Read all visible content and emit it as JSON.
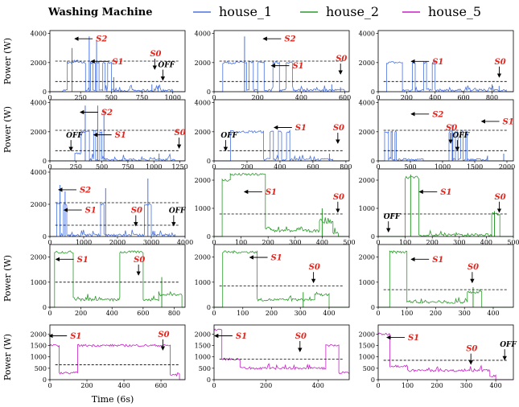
{
  "title": "Washing Machine",
  "legend": [
    {
      "name": "house_1",
      "color": "#4a73e0"
    },
    {
      "name": "house_2",
      "color": "#2b9a2b"
    },
    {
      "name": "house_5",
      "color": "#c81fc8"
    }
  ],
  "ylabel": "Power (W)",
  "xlabel": "Time (6s)",
  "chart_data": [
    {
      "type": "line",
      "house": "house_1",
      "xlim": [
        0,
        1100
      ],
      "xticks": [
        0,
        250,
        500,
        750,
        1000
      ],
      "ylim": [
        0,
        4200
      ],
      "yticks": [
        0,
        2000,
        4000
      ],
      "segments": [
        [
          0,
          100,
          0
        ],
        [
          100,
          140,
          100
        ],
        [
          140,
          200,
          2000
        ],
        [
          200,
          230,
          2100
        ],
        [
          230,
          290,
          2000
        ],
        [
          290,
          330,
          100
        ],
        [
          330,
          350,
          2000
        ],
        [
          350,
          370,
          100
        ],
        [
          370,
          400,
          2000
        ],
        [
          400,
          430,
          100
        ],
        [
          430,
          450,
          2000
        ],
        [
          450,
          470,
          100
        ],
        [
          470,
          500,
          2000
        ],
        [
          500,
          560,
          100
        ],
        [
          560,
          850,
          80
        ],
        [
          850,
          900,
          150
        ],
        [
          900,
          1000,
          80
        ],
        [
          1000,
          1100,
          0
        ]
      ],
      "spikes": [
        [
          180,
          3000
        ],
        [
          320,
          3800
        ],
        [
          380,
          3500
        ],
        [
          520,
          1000
        ],
        [
          830,
          500
        ],
        [
          880,
          400
        ]
      ],
      "thresholds": [
        2100,
        700
      ],
      "annotations": [
        "S2",
        "S1",
        "S0",
        "OFF"
      ]
    },
    {
      "type": "line",
      "house": "house_1",
      "xlim": [
        0,
        620
      ],
      "xticks": [
        0,
        200,
        400,
        600
      ],
      "ylim": [
        0,
        4200
      ],
      "yticks": [
        0,
        2000,
        4000
      ],
      "segments": [
        [
          0,
          40,
          0
        ],
        [
          40,
          150,
          2000
        ],
        [
          150,
          160,
          100
        ],
        [
          160,
          180,
          2000
        ],
        [
          180,
          200,
          100
        ],
        [
          200,
          230,
          2000
        ],
        [
          230,
          270,
          100
        ],
        [
          270,
          300,
          2000
        ],
        [
          300,
          330,
          100
        ],
        [
          330,
          360,
          2000
        ],
        [
          360,
          600,
          100
        ],
        [
          600,
          620,
          0
        ]
      ],
      "spikes": [
        [
          140,
          3800
        ],
        [
          540,
          500
        ],
        [
          580,
          300
        ]
      ],
      "thresholds": [
        2100,
        700
      ],
      "annotations": [
        "S2",
        "S1",
        "S0"
      ]
    },
    {
      "type": "line",
      "house": "house_1",
      "xlim": [
        0,
        950
      ],
      "xticks": [
        0,
        200,
        400,
        600,
        800
      ],
      "ylim": [
        0,
        4200
      ],
      "yticks": [
        0,
        2000,
        4000
      ],
      "segments": [
        [
          0,
          60,
          0
        ],
        [
          60,
          170,
          2000
        ],
        [
          170,
          240,
          100
        ],
        [
          240,
          260,
          2000
        ],
        [
          260,
          320,
          100
        ],
        [
          320,
          340,
          2000
        ],
        [
          340,
          380,
          100
        ],
        [
          380,
          400,
          2000
        ],
        [
          400,
          900,
          100
        ],
        [
          900,
          950,
          0
        ]
      ],
      "spikes": [
        [
          800,
          500
        ],
        [
          850,
          400
        ]
      ],
      "thresholds": [
        700
      ],
      "annotations": [
        "S1",
        "S0"
      ]
    },
    {
      "type": "line",
      "house": "house_1",
      "xlim": [
        0,
        1300
      ],
      "xticks": [
        0,
        250,
        500,
        750,
        1000,
        1250
      ],
      "ylim": [
        0,
        4200
      ],
      "yticks": [
        0,
        2000,
        4000
      ],
      "segments": [
        [
          0,
          240,
          0
        ],
        [
          240,
          300,
          500
        ],
        [
          300,
          380,
          2000
        ],
        [
          380,
          420,
          100
        ],
        [
          420,
          440,
          2000
        ],
        [
          440,
          480,
          100
        ],
        [
          480,
          500,
          2000
        ],
        [
          500,
          540,
          100
        ],
        [
          540,
          1200,
          80
        ],
        [
          1200,
          1300,
          0
        ]
      ],
      "spikes": [
        [
          340,
          3800
        ],
        [
          460,
          3800
        ],
        [
          520,
          3500
        ],
        [
          1050,
          500
        ]
      ],
      "thresholds": [
        2100,
        700
      ],
      "annotations": [
        "OFF",
        "S2",
        "S1",
        "S0"
      ]
    },
    {
      "type": "line",
      "house": "house_1",
      "xlim": [
        0,
        820
      ],
      "xticks": [
        0,
        200,
        400,
        600,
        800
      ],
      "ylim": [
        0,
        4200
      ],
      "yticks": [
        0,
        2000,
        4000
      ],
      "segments": [
        [
          0,
          100,
          0
        ],
        [
          100,
          300,
          2000
        ],
        [
          300,
          340,
          100
        ],
        [
          340,
          360,
          2000
        ],
        [
          360,
          390,
          100
        ],
        [
          390,
          410,
          2000
        ],
        [
          410,
          440,
          100
        ],
        [
          440,
          460,
          2000
        ],
        [
          460,
          720,
          80
        ],
        [
          720,
          820,
          0
        ]
      ],
      "spikes": [
        [
          700,
          500
        ]
      ],
      "thresholds": [
        700
      ],
      "annotations": [
        "OFF",
        "S1",
        "S0"
      ]
    },
    {
      "type": "line",
      "house": "house_1",
      "xlim": [
        0,
        2100
      ],
      "xticks": [
        0,
        500,
        1000,
        1500,
        2000
      ],
      "ylim": [
        0,
        4200
      ],
      "yticks": [
        0,
        2000,
        4000
      ],
      "segments": [
        [
          0,
          100,
          0
        ],
        [
          100,
          160,
          2000
        ],
        [
          160,
          200,
          100
        ],
        [
          200,
          220,
          2000
        ],
        [
          220,
          260,
          100
        ],
        [
          260,
          280,
          2000
        ],
        [
          280,
          700,
          80
        ],
        [
          700,
          1100,
          0
        ],
        [
          1100,
          1160,
          2000
        ],
        [
          1160,
          1200,
          100
        ],
        [
          1200,
          1240,
          2000
        ],
        [
          1240,
          1280,
          100
        ],
        [
          1280,
          1320,
          2000
        ],
        [
          1320,
          1360,
          100
        ],
        [
          1360,
          1380,
          2000
        ],
        [
          1380,
          1700,
          80
        ],
        [
          1700,
          2100,
          0
        ]
      ],
      "spikes": [
        [
          1150,
          2500
        ],
        [
          1950,
          500
        ]
      ],
      "thresholds": [
        2100,
        700
      ],
      "annotations": [
        "S2",
        "OFF",
        "S1",
        "S0"
      ]
    },
    {
      "type": "line",
      "house": "house_1",
      "xlim": [
        0,
        4000
      ],
      "xticks": [
        0,
        1000,
        2000,
        3000,
        4000
      ],
      "ylim": [
        0,
        4200
      ],
      "yticks": [
        0,
        2000,
        4000
      ],
      "segments": [
        [
          0,
          200,
          0
        ],
        [
          200,
          300,
          2000
        ],
        [
          300,
          400,
          100
        ],
        [
          400,
          500,
          2000
        ],
        [
          500,
          600,
          100
        ],
        [
          600,
          1500,
          80
        ],
        [
          1500,
          1600,
          2000
        ],
        [
          1600,
          1700,
          100
        ],
        [
          1700,
          2800,
          80
        ],
        [
          2800,
          3000,
          2000
        ],
        [
          3000,
          3100,
          100
        ],
        [
          3100,
          3700,
          80
        ],
        [
          3700,
          4000,
          0
        ]
      ],
      "spikes": [
        [
          300,
          3200
        ],
        [
          450,
          2800
        ],
        [
          1650,
          3000
        ],
        [
          2900,
          3600
        ]
      ],
      "thresholds": [
        2100,
        700
      ],
      "annotations": [
        "S2",
        "S1",
        "S0",
        "OFF"
      ]
    },
    {
      "type": "line",
      "house": "house_2",
      "xlim": [
        0,
        500
      ],
      "xticks": [
        0,
        100,
        200,
        300,
        400,
        500
      ],
      "ylim": [
        0,
        2400
      ],
      "yticks": [
        0,
        1000,
        2000
      ],
      "segments": [
        [
          0,
          30,
          0
        ],
        [
          30,
          60,
          2000
        ],
        [
          60,
          190,
          2200
        ],
        [
          190,
          210,
          300
        ],
        [
          210,
          390,
          200
        ],
        [
          390,
          440,
          500
        ],
        [
          440,
          460,
          100
        ],
        [
          460,
          500,
          0
        ]
      ],
      "spikes": [
        [
          400,
          1000
        ]
      ],
      "thresholds": [
        800
      ],
      "annotations": [
        "S1",
        "S0"
      ]
    },
    {
      "type": "line",
      "house": "house_2",
      "xlim": [
        0,
        500
      ],
      "xticks": [
        0,
        100,
        200,
        300,
        400,
        500
      ],
      "ylim": [
        0,
        2400
      ],
      "yticks": [
        0,
        1000,
        2000
      ],
      "segments": [
        [
          0,
          100,
          0
        ],
        [
          100,
          150,
          2100
        ],
        [
          150,
          420,
          50
        ],
        [
          420,
          450,
          800
        ],
        [
          450,
          500,
          0
        ]
      ],
      "spikes": [
        [
          120,
          2200
        ],
        [
          430,
          900
        ]
      ],
      "thresholds": [
        800
      ],
      "annotations": [
        "OFF",
        "S1",
        "S0"
      ]
    },
    {
      "type": "line",
      "house": "house_2",
      "xlim": [
        0,
        870
      ],
      "xticks": [
        0,
        200,
        400,
        600,
        800
      ],
      "ylim": [
        0,
        2500
      ],
      "yticks": [
        0,
        1000,
        2000
      ],
      "segments": [
        [
          0,
          30,
          0
        ],
        [
          30,
          150,
          2200
        ],
        [
          150,
          450,
          300
        ],
        [
          450,
          600,
          2200
        ],
        [
          600,
          700,
          300
        ],
        [
          700,
          850,
          500
        ],
        [
          850,
          870,
          0
        ]
      ],
      "spikes": [
        [
          720,
          1200
        ]
      ],
      "thresholds": [
        1000
      ],
      "annotations": [
        "S1",
        "S0"
      ]
    },
    {
      "type": "line",
      "house": "house_2",
      "xlim": [
        0,
        470
      ],
      "xticks": [
        0,
        100,
        200,
        300,
        400
      ],
      "ylim": [
        0,
        2500
      ],
      "yticks": [
        0,
        1000,
        2000
      ],
      "segments": [
        [
          0,
          30,
          0
        ],
        [
          30,
          150,
          2200
        ],
        [
          150,
          350,
          300
        ],
        [
          350,
          400,
          500
        ],
        [
          400,
          470,
          0
        ]
      ],
      "spikes": [
        [
          310,
          600
        ]
      ],
      "thresholds": [
        850
      ],
      "annotations": [
        "S1",
        "S0"
      ]
    },
    {
      "type": "line",
      "house": "house_2",
      "xlim": [
        0,
        470
      ],
      "xticks": [
        0,
        100,
        200,
        300,
        400
      ],
      "ylim": [
        0,
        2500
      ],
      "yticks": [
        0,
        1000,
        2000
      ],
      "segments": [
        [
          0,
          40,
          0
        ],
        [
          40,
          100,
          2200
        ],
        [
          100,
          310,
          200
        ],
        [
          310,
          360,
          600
        ],
        [
          360,
          470,
          0
        ]
      ],
      "spikes": [
        [
          330,
          800
        ]
      ],
      "thresholds": [
        700
      ],
      "annotations": [
        "S1",
        "S0"
      ]
    },
    {
      "type": "line",
      "house": "house_5",
      "xlim": [
        0,
        730
      ],
      "xticks": [
        0,
        200,
        400,
        600
      ],
      "ylim": [
        0,
        2400
      ],
      "yticks": [
        0,
        500,
        1000,
        1500,
        2000
      ],
      "segments": [
        [
          0,
          50,
          1500
        ],
        [
          50,
          150,
          300
        ],
        [
          150,
          650,
          1500
        ],
        [
          650,
          700,
          200
        ],
        [
          700,
          730,
          0
        ]
      ],
      "spikes": [],
      "thresholds": [
        650
      ],
      "annotations": [
        "S1",
        "S0"
      ]
    },
    {
      "type": "line",
      "house": "house_5",
      "xlim": [
        0,
        520
      ],
      "xticks": [
        0,
        200,
        400
      ],
      "ylim": [
        0,
        2400
      ],
      "yticks": [
        0,
        500,
        1000,
        1500,
        2000
      ],
      "segments": [
        [
          0,
          30,
          2200
        ],
        [
          30,
          100,
          900
        ],
        [
          100,
          430,
          500
        ],
        [
          430,
          480,
          1500
        ],
        [
          480,
          520,
          300
        ]
      ],
      "spikes": [],
      "thresholds": [
        900
      ],
      "annotations": [
        "S1",
        "S0"
      ]
    },
    {
      "type": "line",
      "house": "house_5",
      "xlim": [
        0,
        460
      ],
      "xticks": [
        0,
        100,
        200,
        300,
        400
      ],
      "ylim": [
        0,
        2400
      ],
      "yticks": [
        0,
        500,
        1000,
        1500,
        2000
      ],
      "segments": [
        [
          0,
          40,
          2000
        ],
        [
          40,
          100,
          600
        ],
        [
          100,
          380,
          400
        ],
        [
          380,
          400,
          100
        ],
        [
          400,
          460,
          0
        ]
      ],
      "spikes": [],
      "thresholds": [
        850
      ],
      "annotations": [
        "S1",
        "S0",
        "OFF"
      ]
    }
  ]
}
